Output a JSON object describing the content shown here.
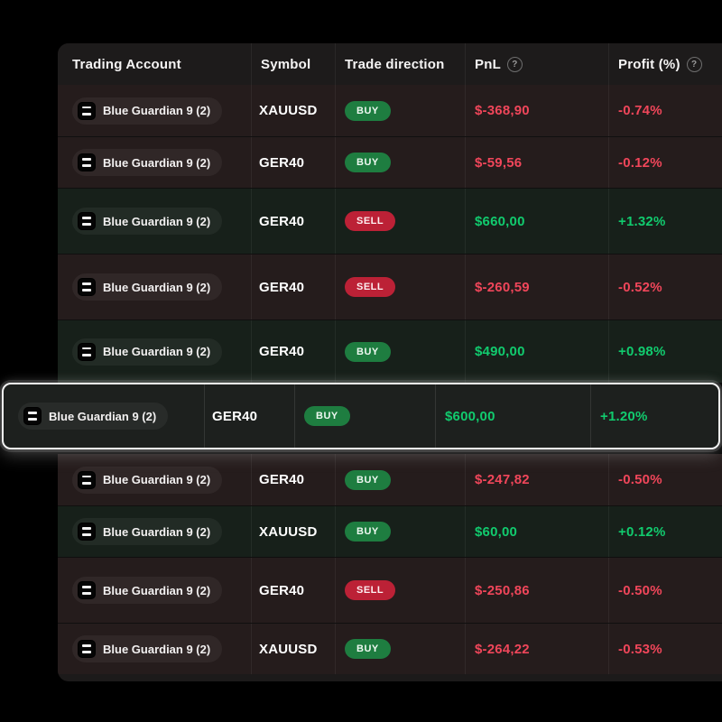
{
  "page": {
    "background": "#000000"
  },
  "icons": {
    "help_glyph": "?",
    "account_logo": "blue-guardian-logo"
  },
  "colors": {
    "gain_text": "#11cb6e",
    "loss_text": "#f0465a",
    "buy_badge_bg": "#1e7d40",
    "sell_badge_bg": "#bc2136",
    "gain_row_bg": "#17201a",
    "loss_row_bg": "#251c1c",
    "highlight_border": "#f2f2f2"
  },
  "table": {
    "columns": [
      {
        "label": "Trading Account"
      },
      {
        "label": "Symbol"
      },
      {
        "label": "Trade direction"
      },
      {
        "label": "PnL",
        "help": true
      },
      {
        "label": "Profit (%)",
        "help": true
      }
    ],
    "rows_top": [
      {
        "account": "Blue Guardian 9 (2)",
        "symbol": "XAUUSD",
        "direction": "BUY",
        "pnl": "$-368,90",
        "profit": "-0.74%",
        "sentiment": "loss"
      },
      {
        "account": "Blue Guardian 9 (2)",
        "symbol": "GER40",
        "direction": "BUY",
        "pnl": "$-59,56",
        "profit": "-0.12%",
        "sentiment": "loss"
      },
      {
        "account": "Blue Guardian 9 (2)",
        "symbol": "GER40",
        "direction": "SELL",
        "pnl": "$660,00",
        "profit": "+1.32%",
        "sentiment": "gain"
      },
      {
        "account": "Blue Guardian 9 (2)",
        "symbol": "GER40",
        "direction": "SELL",
        "pnl": "$-260,59",
        "profit": "-0.52%",
        "sentiment": "loss"
      },
      {
        "account": "Blue Guardian 9 (2)",
        "symbol": "GER40",
        "direction": "BUY",
        "pnl": "$490,00",
        "profit": "+0.98%",
        "sentiment": "gain"
      }
    ],
    "popped_row": {
      "account": "Blue Guardian 9 (2)",
      "symbol": "GER40",
      "direction": "BUY",
      "pnl": "$600,00",
      "profit": "+1.20%",
      "sentiment": "gain"
    },
    "rows_bottom": [
      {
        "account": "Blue Guardian 9 (2)",
        "symbol": "GER40",
        "direction": "BUY",
        "pnl": "$-247,82",
        "profit": "-0.50%",
        "sentiment": "loss"
      },
      {
        "account": "Blue Guardian 9 (2)",
        "symbol": "XAUUSD",
        "direction": "BUY",
        "pnl": "$60,00",
        "profit": "+0.12%",
        "sentiment": "gain"
      },
      {
        "account": "Blue Guardian 9 (2)",
        "symbol": "GER40",
        "direction": "SELL",
        "pnl": "$-250,86",
        "profit": "-0.50%",
        "sentiment": "loss"
      },
      {
        "account": "Blue Guardian 9 (2)",
        "symbol": "XAUUSD",
        "direction": "BUY",
        "pnl": "$-264,22",
        "profit": "-0.53%",
        "sentiment": "loss"
      }
    ]
  }
}
